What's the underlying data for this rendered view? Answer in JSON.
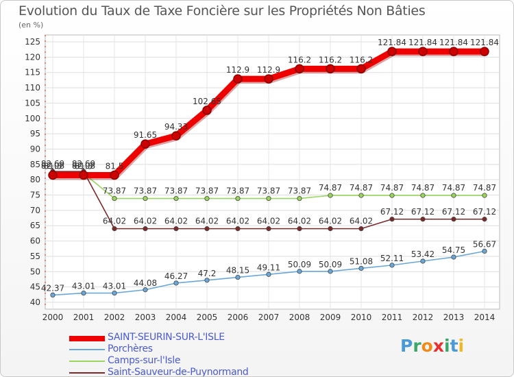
{
  "chart_data": {
    "type": "line",
    "title": "Evolution du Taux de Taxe Foncière sur les Propriétés Non Bâties",
    "subtitle": "(en %)",
    "x": [
      "2000",
      "2001",
      "2002",
      "2003",
      "2004",
      "2005",
      "2006",
      "2007",
      "2008",
      "2009",
      "2010",
      "2011",
      "2012",
      "2013",
      "2014"
    ],
    "ylim": [
      40,
      125
    ],
    "yticks": [
      40,
      45,
      50,
      55,
      60,
      65,
      70,
      75,
      80,
      85,
      90,
      95,
      100,
      105,
      110,
      115,
      120,
      125
    ],
    "series": [
      {
        "name": "SAINT-SEURIN-SUR-L'ISLE",
        "color": "#ee0000",
        "values": [
          81.5,
          81.5,
          81.5,
          91.65,
          94.33,
          102.65,
          112.9,
          112.9,
          116.2,
          116.2,
          116.2,
          121.84,
          121.84,
          121.84,
          121.84
        ],
        "labels": [
          "81.5",
          "81.5",
          "81.5",
          "91.65",
          "94.33",
          "102.65",
          "112.9",
          "112.9",
          "116.2",
          "116.2",
          "116.2",
          "121.84",
          "121.84",
          "121.84",
          "121.84"
        ]
      },
      {
        "name": "Porchères",
        "color": "#6aa7d6",
        "values": [
          42.37,
          43.01,
          43.01,
          44.08,
          46.27,
          47.2,
          48.15,
          49.11,
          50.09,
          50.09,
          51.08,
          52.11,
          53.42,
          54.75,
          56.67
        ],
        "labels": [
          "42.37",
          "43.01",
          "43.01",
          "44.08",
          "46.27",
          "47.2",
          "48.15",
          "49.11",
          "50.09",
          "50.09",
          "51.08",
          "52.11",
          "53.42",
          "54.75",
          "56.67"
        ]
      },
      {
        "name": "Camps-sur-l'Isle",
        "color": "#99d45e",
        "values": [
          82.08,
          82.08,
          73.87,
          73.87,
          73.87,
          73.87,
          73.87,
          73.87,
          73.87,
          74.87,
          74.87,
          74.87,
          74.87,
          74.87,
          74.87
        ],
        "labels": [
          "82.08",
          "82.08",
          "73.87",
          "73.87",
          "73.87",
          "73.87",
          "73.87",
          "73.87",
          "73.87",
          "74.87",
          "74.87",
          "74.87",
          "74.87",
          "74.87",
          "74.87"
        ]
      },
      {
        "name": "Saint-Sauveur-de-Puynormand",
        "color": "#7a2a2a",
        "values": [
          82.69,
          82.69,
          64.02,
          64.02,
          64.02,
          64.02,
          64.02,
          64.02,
          64.02,
          64.02,
          64.02,
          67.12,
          67.12,
          67.12,
          67.12
        ],
        "labels": [
          "82.69",
          "82.69",
          "64.02",
          "64.02",
          "64.02",
          "64.02",
          "64.02",
          "64.02",
          "64.02",
          "64.02",
          "64.02",
          "67.12",
          "67.12",
          "67.12",
          "67.12"
        ]
      }
    ],
    "legend_position": "bottom-left"
  },
  "logo": {
    "letters": [
      "P",
      "r",
      "o",
      "x",
      "i",
      "t",
      "i"
    ],
    "colors": [
      "#4a9ad8",
      "#3aa86a",
      "#f08a1a",
      "#e83030",
      "#3aa86a",
      "#4a9ad8",
      "#f0b820"
    ]
  }
}
